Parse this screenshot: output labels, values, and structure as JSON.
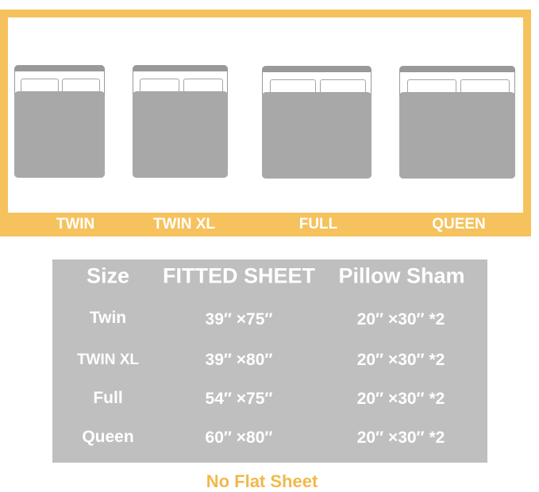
{
  "colors": {
    "accent": "#f6c25e",
    "table_bg": "#bfbfbf",
    "bed_gray": "#a8a8a8"
  },
  "beds": [
    {
      "label": "TWIN"
    },
    {
      "label": "TWIN XL"
    },
    {
      "label": "FULL"
    },
    {
      "label": "QUEEN"
    }
  ],
  "table": {
    "headers": [
      "Size",
      "FITTED SHEET",
      "Pillow Sham"
    ],
    "rows": [
      [
        "Twin",
        "39″ ×75″",
        "20″ ×30″ *2"
      ],
      [
        "TWIN XL",
        "39″ ×80″",
        "20″ ×30″ *2"
      ],
      [
        "Full",
        "54″ ×75″",
        "20″ ×30″ *2"
      ],
      [
        "Queen",
        "60″ ×80″",
        "20″ ×30″ *2"
      ]
    ]
  },
  "note": "No Flat Sheet"
}
